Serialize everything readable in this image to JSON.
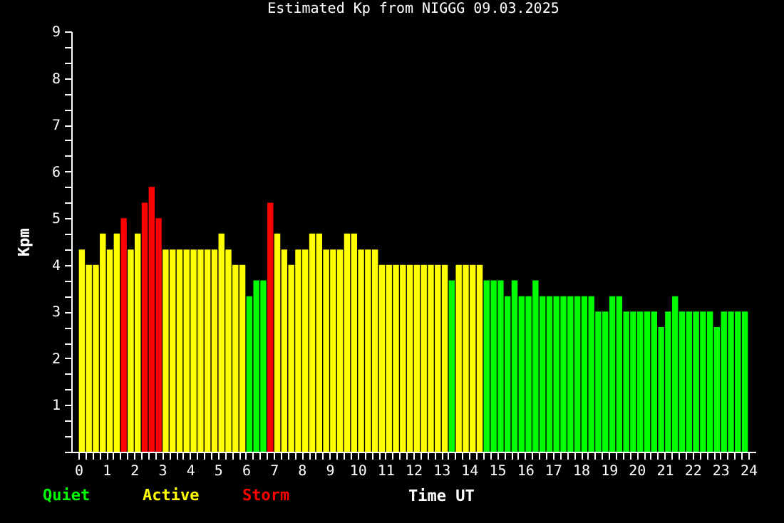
{
  "chart_data": {
    "type": "bar",
    "title": "Estimated Kp from NIGGG 09.03.2025",
    "xlabel": "Time UT",
    "ylabel": "Kpm",
    "legend": "bottom left",
    "x": [
      0.125,
      0.375,
      0.625,
      0.875,
      1.125,
      1.375,
      1.625,
      1.875,
      2.125,
      2.375,
      2.625,
      2.875,
      3.125,
      3.375,
      3.625,
      3.875,
      4.125,
      4.375,
      4.625,
      4.875,
      5.125,
      5.375,
      5.625,
      5.875,
      6.125,
      6.375,
      6.625,
      6.875,
      7.125,
      7.375,
      7.625,
      7.875,
      8.125,
      8.375,
      8.625,
      8.875,
      9.125,
      9.375,
      9.625,
      9.875,
      10.125,
      10.375,
      10.625,
      10.875,
      11.125,
      11.375,
      11.625,
      11.875,
      12.125,
      12.375,
      12.625,
      12.875,
      13.125,
      13.375,
      13.625,
      13.875,
      14.125,
      14.375,
      14.625,
      14.875,
      15.125,
      15.375,
      15.625,
      15.875,
      16.125,
      16.375,
      16.625,
      16.875,
      17.125,
      17.375,
      17.625,
      17.875,
      18.125,
      18.375,
      18.625,
      18.875,
      19.125,
      19.375,
      19.625,
      19.875,
      20.125,
      20.375,
      20.625,
      20.875,
      21.125,
      21.375,
      21.625,
      21.875,
      22.125,
      22.375,
      22.625,
      22.875,
      23.125,
      23.375,
      23.625,
      23.875
    ],
    "series": [
      {
        "name": "Quiet",
        "color": "#00ff00",
        "values": [
          null,
          null,
          null,
          null,
          null,
          null,
          null,
          null,
          null,
          null,
          null,
          null,
          null,
          null,
          null,
          null,
          null,
          null,
          null,
          null,
          null,
          null,
          null,
          null,
          3.33,
          3.67,
          3.67,
          null,
          null,
          null,
          null,
          null,
          null,
          null,
          null,
          null,
          null,
          null,
          null,
          null,
          null,
          null,
          null,
          null,
          null,
          null,
          null,
          null,
          null,
          null,
          null,
          null,
          null,
          3.67,
          null,
          null,
          null,
          null,
          3.67,
          3.67,
          3.67,
          3.33,
          3.67,
          3.33,
          3.33,
          3.67,
          3.33,
          3.33,
          3.33,
          3.33,
          3.33,
          3.33,
          3.33,
          3.33,
          3.0,
          3.0,
          3.33,
          3.33,
          3.0,
          3.0,
          3.0,
          3.0,
          3.0,
          2.67,
          3.0,
          3.33,
          3.0,
          3.0,
          3.0,
          3.0,
          3.0,
          2.67,
          3.0,
          3.0,
          3.0,
          3.0
        ]
      },
      {
        "name": "Active",
        "color": "#ffff00",
        "values": [
          4.33,
          4.0,
          4.0,
          4.67,
          4.33,
          4.67,
          null,
          4.33,
          4.67,
          null,
          null,
          null,
          4.33,
          4.33,
          4.33,
          4.33,
          4.33,
          4.33,
          4.33,
          4.33,
          4.67,
          4.33,
          4.0,
          4.0,
          null,
          null,
          null,
          null,
          4.67,
          4.33,
          4.0,
          4.33,
          4.33,
          4.67,
          4.67,
          4.33,
          4.33,
          4.33,
          4.67,
          4.67,
          4.33,
          4.33,
          4.33,
          4.0,
          4.0,
          4.0,
          4.0,
          4.0,
          4.0,
          4.0,
          4.0,
          4.0,
          4.0,
          null,
          4.0,
          4.0,
          4.0,
          4.0,
          null,
          null,
          null,
          null,
          null,
          null,
          null,
          null,
          null,
          null,
          null,
          null,
          null,
          null,
          null,
          null,
          null,
          null,
          null,
          null,
          null,
          null,
          null,
          null,
          null,
          null,
          null,
          null,
          null,
          null,
          null,
          null,
          null,
          null,
          null,
          null,
          null,
          null
        ]
      },
      {
        "name": "Storm",
        "color": "#ff0000",
        "values": [
          null,
          null,
          null,
          null,
          null,
          null,
          5.0,
          null,
          null,
          5.33,
          5.67,
          5.0,
          null,
          null,
          null,
          null,
          null,
          null,
          null,
          null,
          null,
          null,
          null,
          null,
          null,
          null,
          null,
          5.33,
          null,
          null,
          null,
          null,
          null,
          null,
          null,
          null,
          null,
          null,
          null,
          null,
          null,
          null,
          null,
          null,
          null,
          null,
          null,
          null,
          null,
          null,
          null,
          null,
          null,
          null,
          null,
          null,
          null,
          null,
          null,
          null,
          null,
          null,
          null,
          null,
          null,
          null,
          null,
          null,
          null,
          null,
          null,
          null,
          null,
          null,
          null,
          null,
          null,
          null,
          null,
          null,
          null,
          null,
          null,
          null,
          null,
          null,
          null,
          null,
          null,
          null,
          null,
          null,
          null,
          null,
          null,
          null
        ]
      }
    ],
    "xlim": [
      0,
      24
    ],
    "xticks": [
      0,
      {
        "value": 0.25,
        "label": null
      },
      {
        "value": 0.5,
        "label": null
      },
      {
        "value": 0.75,
        "label": null
      },
      1,
      {
        "value": 1.25,
        "label": null
      },
      {
        "value": 1.5,
        "label": null
      },
      {
        "value": 1.75,
        "label": null
      },
      2,
      {
        "value": 2.25,
        "label": null
      },
      {
        "value": 2.5,
        "label": null
      },
      {
        "value": 2.75,
        "label": null
      },
      3,
      {
        "value": 3.25,
        "label": null
      },
      {
        "value": 3.5,
        "label": null
      },
      {
        "value": 3.75,
        "label": null
      },
      4,
      {
        "value": 4.25,
        "label": null
      },
      {
        "value": 4.5,
        "label": null
      },
      {
        "value": 4.75,
        "label": null
      },
      5,
      {
        "value": 5.25,
        "label": null
      },
      {
        "value": 5.5,
        "label": null
      },
      {
        "value": 5.75,
        "label": null
      },
      6,
      {
        "value": 6.25,
        "label": null
      },
      {
        "value": 6.5,
        "label": null
      },
      {
        "value": 6.75,
        "label": null
      },
      7,
      {
        "value": 7.25,
        "label": null
      },
      {
        "value": 7.5,
        "label": null
      },
      {
        "value": 7.75,
        "label": null
      },
      8,
      {
        "value": 8.25,
        "label": null
      },
      {
        "value": 8.5,
        "label": null
      },
      {
        "value": 8.75,
        "label": null
      },
      9,
      {
        "value": 9.25,
        "label": null
      },
      {
        "value": 9.5,
        "label": null
      },
      {
        "value": 9.75,
        "label": null
      },
      10,
      {
        "value": 10.25,
        "label": null
      },
      {
        "value": 10.5,
        "label": null
      },
      {
        "value": 10.75,
        "label": null
      },
      11,
      {
        "value": 11.25,
        "label": null
      },
      {
        "value": 11.5,
        "label": null
      },
      {
        "value": 11.75,
        "label": null
      },
      12,
      {
        "value": 12.25,
        "label": null
      },
      {
        "value": 12.5,
        "label": null
      },
      {
        "value": 12.75,
        "label": null
      },
      13,
      {
        "value": 13.25,
        "label": null
      },
      {
        "value": 13.5,
        "label": null
      },
      {
        "value": 13.75,
        "label": null
      },
      14,
      {
        "value": 14.25,
        "label": null
      },
      {
        "value": 14.5,
        "label": null
      },
      {
        "value": 14.75,
        "label": null
      },
      15,
      {
        "value": 15.25,
        "label": null
      },
      {
        "value": 15.5,
        "label": null
      },
      {
        "value": 15.75,
        "label": null
      },
      16,
      {
        "value": 16.25,
        "label": null
      },
      {
        "value": 16.5,
        "label": null
      },
      {
        "value": 16.75,
        "label": null
      },
      17,
      {
        "value": 17.25,
        "label": null
      },
      {
        "value": 17.5,
        "label": null
      },
      {
        "value": 17.75,
        "label": null
      },
      18,
      {
        "value": 18.25,
        "label": null
      },
      {
        "value": 18.5,
        "label": null
      },
      {
        "value": 18.75,
        "label": null
      },
      19,
      {
        "value": 19.25,
        "label": null
      },
      {
        "value": 19.5,
        "label": null
      },
      {
        "value": 19.75,
        "label": null
      },
      20,
      {
        "value": 20.25,
        "label": null
      },
      {
        "value": 20.5,
        "label": null
      },
      {
        "value": 20.75,
        "label": null
      },
      21,
      {
        "value": 21.25,
        "label": null
      },
      {
        "value": 21.5,
        "label": null
      },
      {
        "value": 21.75,
        "label": null
      },
      22,
      {
        "value": 22.25,
        "label": null
      },
      {
        "value": 22.5,
        "label": null
      },
      {
        "value": 22.75,
        "label": null
      },
      23,
      {
        "value": 23.25,
        "label": null
      },
      {
        "value": 23.5,
        "label": null
      },
      {
        "value": 23.75,
        "label": null
      },
      24
    ],
    "ylim": [
      0,
      9
    ],
    "yticks": [
      {
        "value": 0,
        "label": null
      },
      {
        "value": 0.333,
        "label": null
      },
      {
        "value": 0.667,
        "label": null
      },
      1,
      {
        "value": 1.333,
        "label": null
      },
      {
        "value": 1.667,
        "label": null
      },
      2,
      {
        "value": 2.333,
        "label": null
      },
      {
        "value": 2.667,
        "label": null
      },
      3,
      {
        "value": 3.333,
        "label": null
      },
      {
        "value": 3.667,
        "label": null
      },
      4,
      {
        "value": 4.333,
        "label": null
      },
      {
        "value": 4.667,
        "label": null
      },
      5,
      {
        "value": 5.333,
        "label": null
      },
      {
        "value": 5.667,
        "label": null
      },
      6,
      {
        "value": 6.333,
        "label": null
      },
      {
        "value": 6.667,
        "label": null
      },
      7,
      {
        "value": 7.333,
        "label": null
      },
      {
        "value": 7.667,
        "label": null
      },
      8,
      {
        "value": 8.333,
        "label": null
      },
      {
        "value": 8.667,
        "label": null
      },
      9
    ]
  }
}
